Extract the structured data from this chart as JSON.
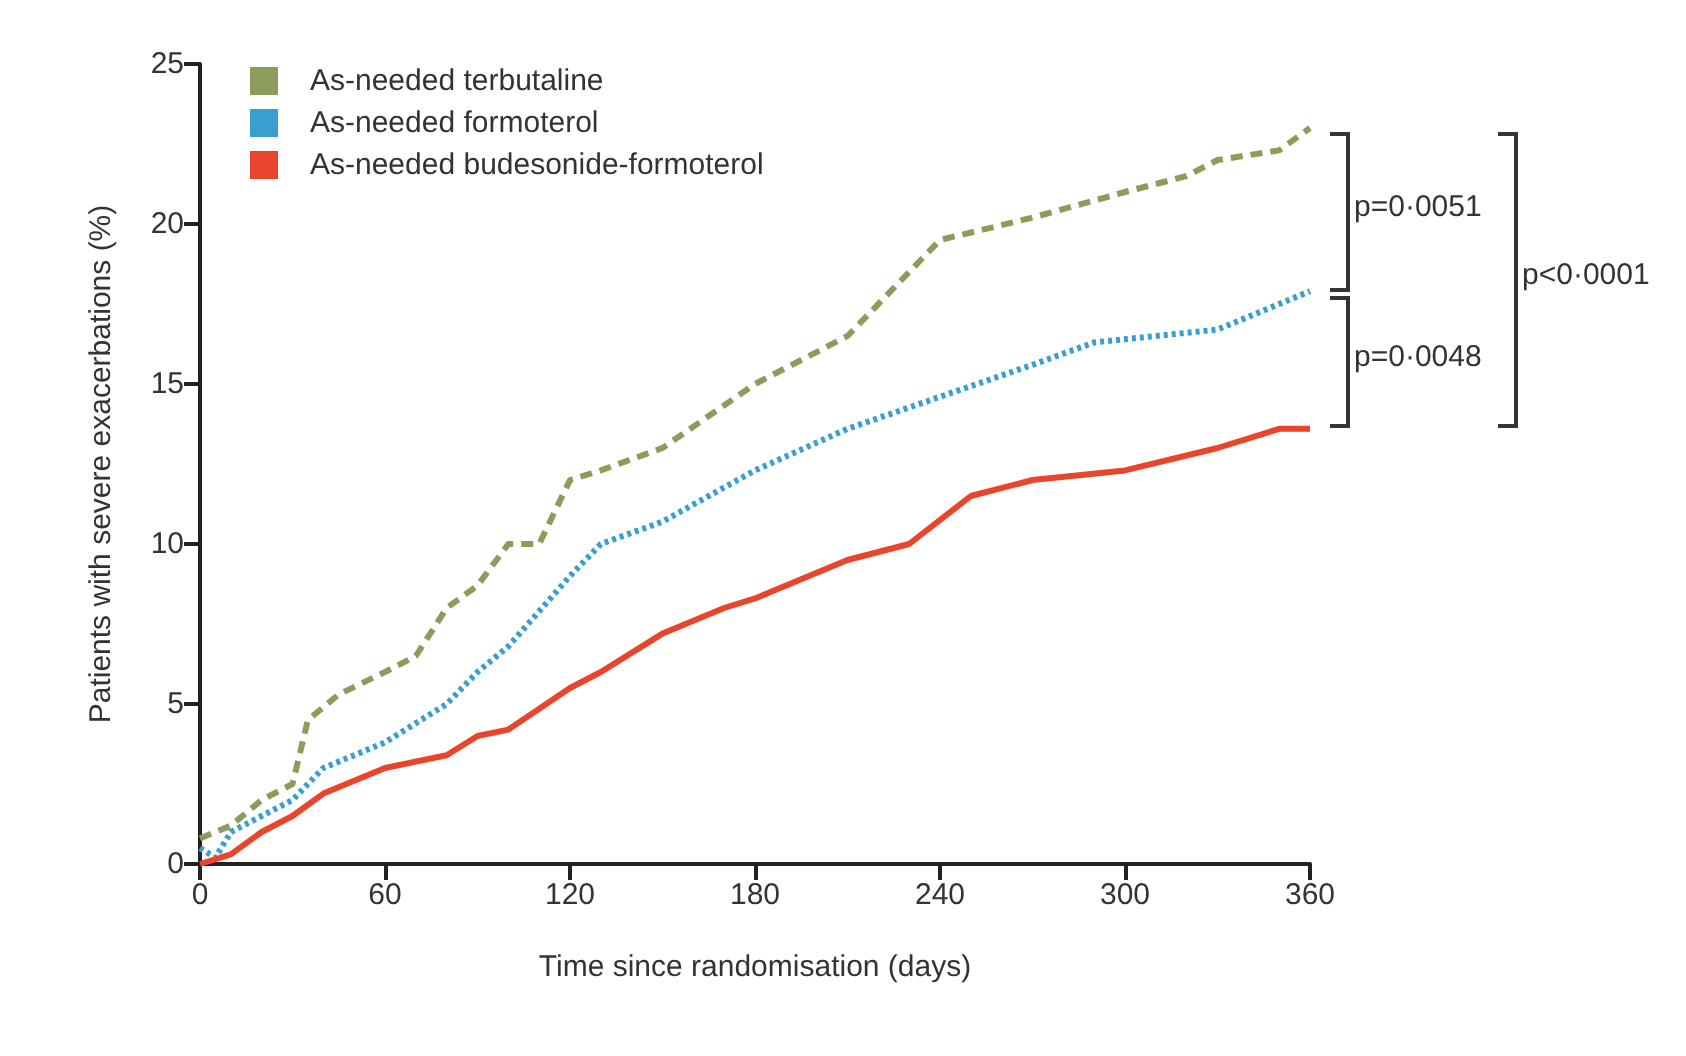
{
  "chart_data": {
    "type": "line",
    "xlabel": "Time since randomisation (days)",
    "ylabel": "Patients with severe exacerbations (%)",
    "xlim": [
      0,
      360
    ],
    "xticks": [
      0,
      60,
      120,
      180,
      240,
      300,
      360
    ],
    "ylim": [
      0,
      25
    ],
    "yticks": [
      0,
      5,
      10,
      15,
      20,
      25
    ],
    "grid": false,
    "legend": "top left",
    "marker": "none",
    "series": [
      {
        "name": "As-needed terbutaline",
        "color": "#8c9c5a",
        "line_style": "dashed",
        "x": [
          0,
          10,
          20,
          30,
          35,
          45,
          60,
          70,
          80,
          90,
          100,
          110,
          120,
          130,
          150,
          180,
          210,
          240,
          270,
          300,
          320,
          330,
          350,
          360
        ],
        "values": [
          0.8,
          1.2,
          2,
          2.5,
          4.5,
          5.3,
          6,
          6.5,
          8,
          8.7,
          10,
          10,
          12,
          12.3,
          13,
          15,
          16.5,
          19.5,
          20.2,
          21,
          21.5,
          22,
          22.3,
          23
        ]
      },
      {
        "name": "As-needed formoterol",
        "color": "#3a9fd0",
        "line_style": "dotted",
        "x": [
          0,
          5,
          10,
          30,
          40,
          60,
          80,
          90,
          100,
          120,
          130,
          150,
          180,
          210,
          240,
          270,
          290,
          330,
          360
        ],
        "values": [
          0.5,
          0.2,
          1,
          2,
          3,
          3.8,
          5,
          6,
          6.8,
          9,
          10,
          10.7,
          12.3,
          13.6,
          14.6,
          15.6,
          16.3,
          16.7,
          17.9
        ]
      },
      {
        "name": "As-needed budesonide-formoterol",
        "color": "#e8452c",
        "line_style": "solid",
        "x": [
          0,
          10,
          20,
          30,
          40,
          60,
          80,
          90,
          100,
          120,
          130,
          150,
          170,
          180,
          210,
          230,
          250,
          270,
          300,
          330,
          350,
          360
        ],
        "values": [
          0,
          0.3,
          1,
          1.5,
          2.2,
          3,
          3.4,
          4,
          4.2,
          5.5,
          6,
          7.2,
          8,
          8.3,
          9.5,
          10,
          11.5,
          12,
          12.3,
          13,
          13.6,
          13.6
        ]
      }
    ],
    "annotations": [
      "p=0·0051",
      "p=0·0048",
      "p<0·0001"
    ]
  }
}
